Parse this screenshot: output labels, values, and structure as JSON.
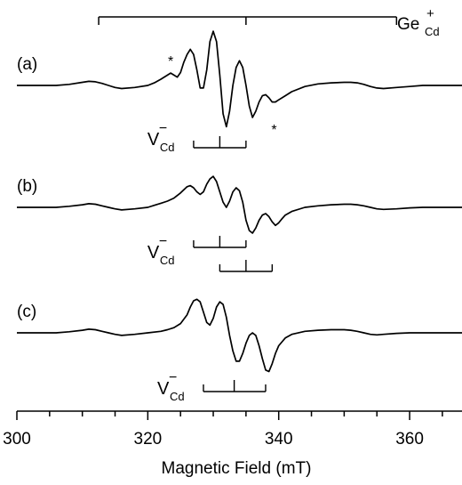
{
  "chart_data": {
    "type": "line",
    "xlabel": "Magnetic Field (mT)",
    "xlim": [
      300,
      368
    ],
    "x_ticks": [
      300,
      320,
      340,
      360
    ],
    "x_tick_labels": [
      "300",
      "320",
      "340",
      "360"
    ],
    "x_minor_step": 5,
    "grid": false,
    "panels": [
      {
        "label": "(a)",
        "asterisks": [
          {
            "text": "*",
            "x": 323.5,
            "side": "above"
          },
          {
            "text": "*",
            "x": 339.3,
            "side": "below"
          }
        ],
        "series": [
          {
            "x": [
              300,
              302,
              304,
              306,
              308,
              310,
              311,
              312,
              313,
              314,
              315,
              316,
              318,
              320,
              321,
              322,
              323,
              323.5,
              324,
              324.5,
              325,
              325.5,
              326,
              326.5,
              327,
              327.5,
              328,
              328.5,
              329,
              329.5,
              330,
              330.5,
              331,
              331.5,
              332,
              332.5,
              333,
              333.5,
              334,
              334.5,
              335,
              335.5,
              336,
              336.5,
              337,
              337.5,
              338,
              338.5,
              339,
              339.5,
              340,
              341,
              342,
              344,
              346,
              348,
              350,
              351,
              352,
              353,
              354,
              355,
              356,
              358,
              360,
              362,
              364,
              366,
              368
            ],
            "y": [
              0,
              0,
              0,
              0,
              0.02,
              0.06,
              0.08,
              0.07,
              0.04,
              0,
              -0.04,
              -0.06,
              -0.04,
              0,
              0.05,
              0.12,
              0.2,
              0.24,
              0.2,
              0.16,
              0.25,
              0.45,
              0.6,
              0.7,
              0.6,
              0.3,
              -0.05,
              -0.05,
              0.3,
              0.85,
              1.05,
              0.85,
              0.2,
              -0.55,
              -0.8,
              -0.5,
              0,
              0.35,
              0.48,
              0.35,
              0,
              -0.4,
              -0.62,
              -0.5,
              -0.32,
              -0.2,
              -0.18,
              -0.24,
              -0.32,
              -0.32,
              -0.28,
              -0.2,
              -0.12,
              -0.02,
              0.03,
              0.05,
              0.06,
              0.06,
              0.05,
              0.02,
              -0.02,
              -0.05,
              -0.06,
              -0.04,
              -0.02,
              0,
              0,
              0,
              0
            ]
          }
        ],
        "markers": [
          {
            "label": "V",
            "superscript": "−",
            "subscript": "Cd",
            "brackets": [
              {
                "x_start": 327,
                "x_end": 335,
                "ticks": [
                  327,
                  331,
                  335
                ]
              }
            ]
          }
        ]
      },
      {
        "label": "(b)",
        "asterisks": [],
        "series": [
          {
            "x": [
              300,
              302,
              304,
              306,
              308,
              310,
              311,
              312,
              313,
              314,
              315,
              316,
              318,
              320,
              321,
              322,
              323,
              324,
              325,
              326,
              326.5,
              327,
              327.5,
              328,
              328.5,
              329,
              329.5,
              330,
              330.5,
              331,
              331.5,
              332,
              332.5,
              333,
              333.5,
              334,
              334.5,
              335,
              335.5,
              336,
              336.5,
              337,
              337.5,
              338,
              338.5,
              339,
              339.5,
              340,
              340.5,
              341,
              342,
              344,
              346,
              348,
              350,
              351,
              352,
              353,
              354,
              355,
              356,
              358,
              360,
              362,
              364,
              366,
              368
            ],
            "y": [
              0,
              0,
              0,
              0,
              0.02,
              0.05,
              0.07,
              0.06,
              0.03,
              0,
              -0.03,
              -0.05,
              -0.03,
              0,
              0.04,
              0.08,
              0.12,
              0.18,
              0.28,
              0.4,
              0.42,
              0.38,
              0.3,
              0.25,
              0.3,
              0.45,
              0.55,
              0.6,
              0.5,
              0.3,
              0.1,
              0,
              0.12,
              0.3,
              0.38,
              0.32,
              0.1,
              -0.25,
              -0.45,
              -0.5,
              -0.4,
              -0.25,
              -0.15,
              -0.12,
              -0.18,
              -0.28,
              -0.35,
              -0.3,
              -0.22,
              -0.15,
              -0.08,
              0,
              0.03,
              0.05,
              0.06,
              0.06,
              0.05,
              0.03,
              0,
              -0.03,
              -0.04,
              -0.03,
              -0.01,
              0,
              0,
              0,
              0
            ]
          }
        ],
        "markers": [
          {
            "label": "V",
            "superscript": "−",
            "subscript": "Cd",
            "brackets": [
              {
                "x_start": 327,
                "x_end": 335,
                "ticks": [
                  327,
                  331,
                  335
                ]
              },
              {
                "x_start": 331,
                "x_end": 339,
                "ticks": [
                  331,
                  335,
                  339
                ]
              }
            ]
          }
        ]
      },
      {
        "label": "(c)",
        "asterisks": [],
        "series": [
          {
            "x": [
              300,
              302,
              304,
              306,
              308,
              310,
              311,
              312,
              313,
              314,
              315,
              316,
              318,
              320,
              322,
              323,
              324,
              325,
              326,
              326.5,
              327,
              327.5,
              328,
              328.5,
              329,
              329.5,
              330,
              330.5,
              331,
              331.5,
              332,
              332.5,
              333,
              333.5,
              334,
              334.5,
              335,
              335.5,
              336,
              336.5,
              337,
              337.5,
              338,
              338.5,
              339,
              339.5,
              340,
              341,
              342,
              344,
              346,
              348,
              350,
              351,
              352,
              353,
              354,
              355,
              356,
              358,
              360,
              362,
              364,
              366,
              368
            ],
            "y": [
              0,
              0,
              0,
              0,
              0.02,
              0.05,
              0.07,
              0.06,
              0.03,
              0,
              -0.03,
              -0.05,
              -0.03,
              0,
              0.03,
              0.06,
              0.1,
              0.18,
              0.35,
              0.5,
              0.62,
              0.65,
              0.6,
              0.4,
              0.2,
              0.15,
              0.28,
              0.5,
              0.6,
              0.55,
              0.3,
              -0.05,
              -0.35,
              -0.55,
              -0.55,
              -0.4,
              -0.2,
              -0.05,
              0,
              -0.05,
              -0.25,
              -0.5,
              -0.72,
              -0.75,
              -0.6,
              -0.4,
              -0.25,
              -0.1,
              -0.03,
              0.03,
              0.05,
              0.06,
              0.06,
              0.05,
              0.03,
              0,
              -0.03,
              -0.04,
              -0.03,
              -0.01,
              0,
              0,
              0,
              0,
              0
            ]
          }
        ],
        "markers": [
          {
            "label": "V",
            "superscript": "−",
            "subscript": "Cd",
            "brackets": [
              {
                "x_start": 328.5,
                "x_end": 338,
                "ticks": [
                  328.5,
                  333.2,
                  338
                ]
              }
            ]
          }
        ]
      }
    ],
    "top_marker": {
      "label": "Ge",
      "superscript": "+",
      "subscript": "Cd",
      "x_start": 312.5,
      "x_end": 358,
      "ticks": [
        312.5,
        335,
        358
      ]
    }
  }
}
